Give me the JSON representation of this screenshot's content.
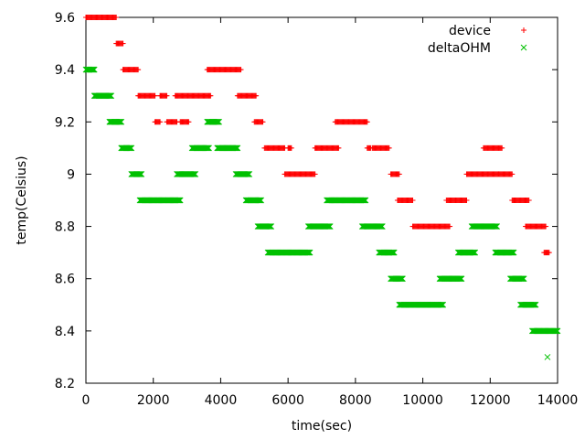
{
  "chart_data": {
    "type": "scatter",
    "xlabel": "time(sec)",
    "ylabel": "temp(Celsius)",
    "xlim": [
      0,
      14000
    ],
    "ylim": [
      8.2,
      9.6
    ],
    "x_ticks": [
      0,
      2000,
      4000,
      6000,
      8000,
      10000,
      12000,
      14000
    ],
    "y_ticks": [
      8.2,
      8.4,
      8.6,
      8.8,
      9,
      9.2,
      9.4,
      9.6
    ],
    "y_tick_labels": [
      "8.2",
      "8.4",
      "8.6",
      "8.8",
      "9",
      "9.2",
      "9.4",
      "9.6"
    ],
    "grid": false,
    "legend_position": "top-right",
    "series": [
      {
        "name": "device",
        "marker": "plus",
        "color": "#ff0000",
        "runs": [
          {
            "y": 9.6,
            "x0": 0,
            "x1": 900
          },
          {
            "y": 9.5,
            "x0": 900,
            "x1": 1100
          },
          {
            "y": 9.4,
            "x0": 1100,
            "x1": 1550
          },
          {
            "y": 9.3,
            "x0": 1550,
            "x1": 2050
          },
          {
            "y": 9.2,
            "x0": 2050,
            "x1": 2200
          },
          {
            "y": 9.3,
            "x0": 2200,
            "x1": 2400
          },
          {
            "y": 9.2,
            "x0": 2400,
            "x1": 2700
          },
          {
            "y": 9.3,
            "x0": 2650,
            "x1": 3700
          },
          {
            "y": 9.2,
            "x0": 2800,
            "x1": 3050
          },
          {
            "y": 9.4,
            "x0": 3600,
            "x1": 4600
          },
          {
            "y": 9.3,
            "x0": 4500,
            "x1": 5050
          },
          {
            "y": 9.2,
            "x0": 5000,
            "x1": 5250
          },
          {
            "y": 9.1,
            "x0": 5300,
            "x1": 5900
          },
          {
            "y": 9.1,
            "x0": 6000,
            "x1": 6100
          },
          {
            "y": 9.0,
            "x0": 5900,
            "x1": 6800
          },
          {
            "y": 9.1,
            "x0": 6800,
            "x1": 7500
          },
          {
            "y": 9.2,
            "x0": 7400,
            "x1": 8350
          },
          {
            "y": 9.1,
            "x0": 8350,
            "x1": 8450
          },
          {
            "y": 9.1,
            "x0": 8500,
            "x1": 9000
          },
          {
            "y": 9.0,
            "x0": 9050,
            "x1": 9300
          },
          {
            "y": 8.9,
            "x0": 9250,
            "x1": 9700
          },
          {
            "y": 8.8,
            "x0": 9700,
            "x1": 10800
          },
          {
            "y": 8.9,
            "x0": 10700,
            "x1": 11300
          },
          {
            "y": 9.0,
            "x0": 11300,
            "x1": 12650
          },
          {
            "y": 9.1,
            "x0": 11800,
            "x1": 12350
          },
          {
            "y": 8.9,
            "x0": 12650,
            "x1": 13150
          },
          {
            "y": 8.8,
            "x0": 13050,
            "x1": 13650
          },
          {
            "y": 8.7,
            "x0": 13600,
            "x1": 13750
          }
        ]
      },
      {
        "name": "deltaOHM",
        "marker": "cross",
        "color": "#00c000",
        "runs": [
          {
            "y": 9.4,
            "x0": 0,
            "x1": 250
          },
          {
            "y": 9.3,
            "x0": 250,
            "x1": 750
          },
          {
            "y": 9.2,
            "x0": 700,
            "x1": 1050
          },
          {
            "y": 9.1,
            "x0": 1050,
            "x1": 1350
          },
          {
            "y": 9.0,
            "x0": 1350,
            "x1": 1650
          },
          {
            "y": 8.9,
            "x0": 1600,
            "x1": 2800
          },
          {
            "y": 9.0,
            "x0": 2700,
            "x1": 3250
          },
          {
            "y": 9.1,
            "x0": 3150,
            "x1": 3650
          },
          {
            "y": 9.2,
            "x0": 3600,
            "x1": 3950
          },
          {
            "y": 9.1,
            "x0": 3900,
            "x1": 4500
          },
          {
            "y": 9.0,
            "x0": 4450,
            "x1": 4850
          },
          {
            "y": 8.9,
            "x0": 4750,
            "x1": 5200
          },
          {
            "y": 8.8,
            "x0": 5100,
            "x1": 5500
          },
          {
            "y": 8.7,
            "x0": 5400,
            "x1": 6650
          },
          {
            "y": 8.8,
            "x0": 6600,
            "x1": 7250
          },
          {
            "y": 8.9,
            "x0": 7150,
            "x1": 8300
          },
          {
            "y": 8.8,
            "x0": 8200,
            "x1": 8800
          },
          {
            "y": 8.7,
            "x0": 8700,
            "x1": 9150
          },
          {
            "y": 8.6,
            "x0": 9050,
            "x1": 9400
          },
          {
            "y": 8.5,
            "x0": 9300,
            "x1": 10600
          },
          {
            "y": 8.6,
            "x0": 10500,
            "x1": 11150
          },
          {
            "y": 8.7,
            "x0": 11050,
            "x1": 11550
          },
          {
            "y": 8.8,
            "x0": 11450,
            "x1": 12200
          },
          {
            "y": 8.7,
            "x0": 12150,
            "x1": 12700
          },
          {
            "y": 8.6,
            "x0": 12600,
            "x1": 13000
          },
          {
            "y": 8.5,
            "x0": 12900,
            "x1": 13350
          },
          {
            "y": 8.4,
            "x0": 13250,
            "x1": 14000
          },
          {
            "y": 8.3,
            "x0": 13700,
            "x1": 13700
          }
        ]
      }
    ]
  }
}
